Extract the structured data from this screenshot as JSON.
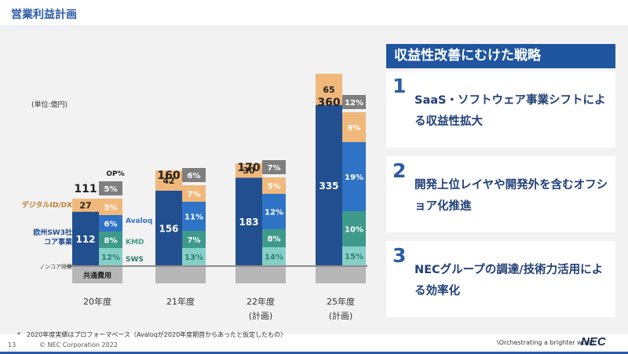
{
  "header": {
    "title": "営業利益計画",
    "page_number": "13",
    "copyright": "© NEC Corporation 2022",
    "tagline": "\\Orchestrating a brighter world",
    "logo_text": "NEC"
  },
  "footnote": "*　2020年度実績はプロフォーマベース（Avaloqが2020年度期首からあったと仮定したもの）",
  "chart_data": {
    "type": "stacked-bar",
    "unit_label": "(単位:億円)",
    "categories": [
      "20年度",
      "21年度",
      "22年度\n(計画)",
      "25年度\n(計画)"
    ],
    "totals": [
      111,
      160,
      170,
      360
    ],
    "op_margin_header": "OP%",
    "op_margins": [
      "5%",
      "6%",
      "7%",
      "12%"
    ],
    "common_cost_label": "共通費用",
    "noncore_label": "ノンコア経費",
    "left_series": [
      {
        "name": "欧州SW3社\nコア事業",
        "values": [
          112,
          156,
          183,
          335
        ],
        "color": "#214f8f"
      },
      {
        "name": "デジタルID/DX",
        "values": [
          27,
          42,
          30,
          65
        ],
        "color": "#f0b87a"
      }
    ],
    "right_series": [
      {
        "name": "SWS",
        "values": [
          "12%",
          "13%",
          "14%",
          "15%"
        ],
        "color": "#85cfc7"
      },
      {
        "name": "KMD",
        "values": [
          "8%",
          "7%",
          "8%",
          "10%"
        ],
        "color": "#3e9a8a"
      },
      {
        "name": "Avaloq",
        "values": [
          "6%",
          "11%",
          "12%",
          "19%"
        ],
        "color": "#2f73c7"
      },
      {
        "name": "",
        "values": [
          "5%",
          "7%",
          "5%",
          "9%"
        ],
        "color": "#f0b87a"
      }
    ],
    "colors": {
      "op": "#7f7f7f",
      "cost": "#b7b7b7"
    }
  },
  "strategy": {
    "heading": "収益性改善にむけた戦略",
    "items": [
      {
        "num": "1",
        "text": "SaaS・ソフトウェア事業シフトによる収益性拡大"
      },
      {
        "num": "2",
        "text": "開発上位レイヤや開発外を含むオフショア化推進"
      },
      {
        "num": "3",
        "text": "NECグループの調達/技術力活用による効率化"
      }
    ]
  }
}
